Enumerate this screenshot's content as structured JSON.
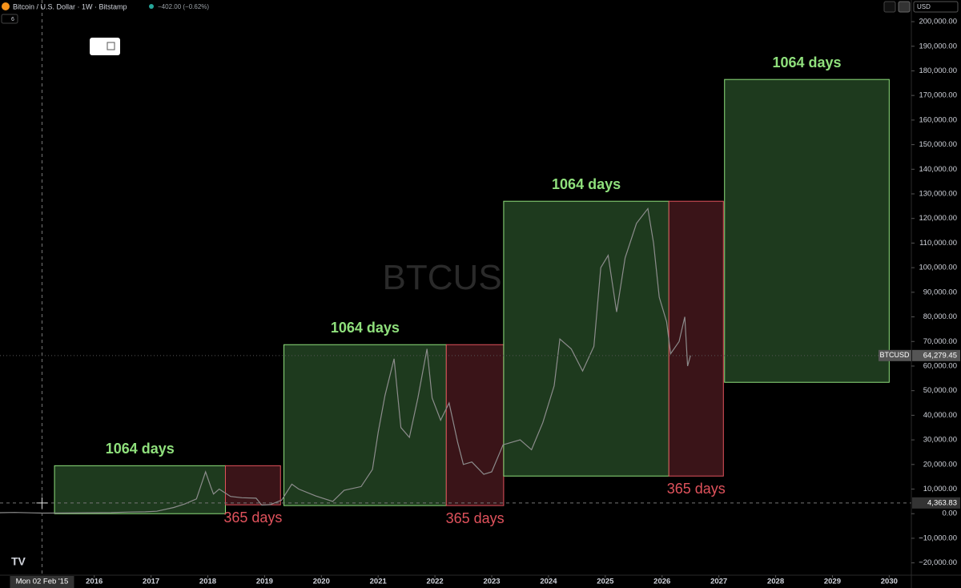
{
  "header": {
    "symbol": "Bitcoin / U.S. Dollar · 1W · Bitstamp",
    "change": "−402.00 (−0.62%)",
    "indicators": "6",
    "currency": "USD"
  },
  "chart_data": {
    "type": "line",
    "watermark": "BTCUSD",
    "x": [
      2014.34,
      2014.6,
      2014.9,
      2015.1,
      2015.5,
      2015.9,
      2016.3,
      2016.6,
      2016.9,
      2017.1,
      2017.4,
      2017.6,
      2017.8,
      2017.96,
      2018.05,
      2018.1,
      2018.2,
      2018.4,
      2018.6,
      2018.85,
      2018.95,
      2019.1,
      2019.3,
      2019.48,
      2019.6,
      2019.9,
      2020.2,
      2020.4,
      2020.7,
      2020.9,
      2021.0,
      2021.12,
      2021.28,
      2021.4,
      2021.55,
      2021.7,
      2021.86,
      2021.95,
      2022.1,
      2022.25,
      2022.4,
      2022.5,
      2022.65,
      2022.86,
      2023.0,
      2023.2,
      2023.5,
      2023.7,
      2023.9,
      2024.1,
      2024.2,
      2024.4,
      2024.6,
      2024.8,
      2024.92,
      2025.05,
      2025.2,
      2025.35,
      2025.55,
      2025.75,
      2025.85,
      2025.95,
      2026.08,
      2026.15,
      2026.3,
      2026.4,
      2026.45,
      2026.5
    ],
    "series": [
      {
        "name": "BTCUSD",
        "color": "#8c8c8c",
        "values": [
          400,
          500,
          350,
          230,
          260,
          380,
          430,
          650,
          750,
          1000,
          2500,
          4000,
          6000,
          17000,
          11000,
          8000,
          10000,
          7000,
          6500,
          6300,
          3500,
          3700,
          5500,
          12000,
          10000,
          7200,
          5000,
          9500,
          11000,
          18000,
          33000,
          48000,
          63000,
          35000,
          31000,
          47000,
          67000,
          47000,
          38000,
          45000,
          29000,
          20000,
          21000,
          16000,
          17000,
          28000,
          30000,
          26000,
          37000,
          52000,
          71000,
          67000,
          58000,
          68000,
          100000,
          105000,
          82000,
          104000,
          118000,
          124000,
          110000,
          88000,
          78000,
          65000,
          70000,
          80000,
          60000,
          64279.45
        ]
      }
    ],
    "last": {
      "value": 64279.45,
      "label": "64,279.45"
    },
    "crosshair": {
      "x": 2015.08,
      "x_label": "Mon 02 Feb '15",
      "y": 4363.83,
      "y_label": "4,363.83"
    },
    "boxes": [
      {
        "x": [
          2015.3,
          2018.31
        ],
        "y": [
          0,
          19500
        ],
        "label": "1064 days",
        "label_position": "above",
        "fill": "#1e3a1e",
        "stroke": "#8fe07c",
        "label_color": "#8fe07c"
      },
      {
        "x": [
          2018.31,
          2019.28
        ],
        "y": [
          3600,
          19500
        ],
        "label": "365 days",
        "label_position": "below",
        "fill": "#3a1418",
        "stroke": "#e0525c",
        "label_color": "#e0525c"
      },
      {
        "x": [
          2019.34,
          2022.2
        ],
        "y": [
          3300,
          68700
        ],
        "label": "1064 days",
        "label_position": "above",
        "fill": "#1e3a1e",
        "stroke": "#8fe07c",
        "label_color": "#8fe07c"
      },
      {
        "x": [
          2022.2,
          2023.21
        ],
        "y": [
          3300,
          68700
        ],
        "label": "365 days",
        "label_position": "below",
        "fill": "#3a1418",
        "stroke": "#e0525c",
        "label_color": "#e0525c"
      },
      {
        "x": [
          2023.21,
          2026.12
        ],
        "y": [
          15300,
          127000
        ],
        "label": "1064 days",
        "label_position": "above",
        "fill": "#1e3a1e",
        "stroke": "#8fe07c",
        "label_color": "#8fe07c"
      },
      {
        "x": [
          2026.12,
          2027.08
        ],
        "y": [
          15300,
          127000
        ],
        "label": "365 days",
        "label_position": "below",
        "fill": "#3a1418",
        "stroke": "#e0525c",
        "label_color": "#e0525c"
      },
      {
        "x": [
          2027.1,
          2030.0
        ],
        "y": [
          53400,
          176500
        ],
        "label": "1064 days",
        "label_position": "above",
        "fill": "#1e3a1e",
        "stroke": "#8fe07c",
        "label_color": "#8fe07c"
      }
    ],
    "xlim": [
      2014.34,
      2030.39
    ],
    "xticks": [
      2016,
      2017,
      2018,
      2019,
      2020,
      2021,
      2022,
      2023,
      2024,
      2025,
      2026,
      2027,
      2028,
      2029,
      2030
    ],
    "ylim": [
      -25000,
      208800
    ],
    "yticks": [
      {
        "value": -20000,
        "label": "−20,000.00"
      },
      {
        "value": -10000,
        "label": "−10,000.00"
      },
      {
        "value": 0,
        "label": "0.00"
      },
      {
        "value": 10000,
        "label": "10,000.00"
      },
      {
        "value": 20000,
        "label": "20,000.00"
      },
      {
        "value": 30000,
        "label": "30,000.00"
      },
      {
        "value": 40000,
        "label": "40,000.00"
      },
      {
        "value": 50000,
        "label": "50,000.00"
      },
      {
        "value": 60000,
        "label": "60,000.00"
      },
      {
        "value": 70000,
        "label": "70,000.00"
      },
      {
        "value": 80000,
        "label": "80,000.00"
      },
      {
        "value": 90000,
        "label": "90,000.00"
      },
      {
        "value": 100000,
        "label": "100,000.00"
      },
      {
        "value": 110000,
        "label": "110,000.00"
      },
      {
        "value": 120000,
        "label": "120,000.00"
      },
      {
        "value": 130000,
        "label": "130,000.00"
      },
      {
        "value": 140000,
        "label": "140,000.00"
      },
      {
        "value": 150000,
        "label": "150,000.00"
      },
      {
        "value": 160000,
        "label": "160,000.00"
      },
      {
        "value": 170000,
        "label": "170,000.00"
      },
      {
        "value": 180000,
        "label": "180,000.00"
      },
      {
        "value": 190000,
        "label": "190,000.00"
      },
      {
        "value": 200000,
        "label": "200,000.00"
      }
    ]
  }
}
